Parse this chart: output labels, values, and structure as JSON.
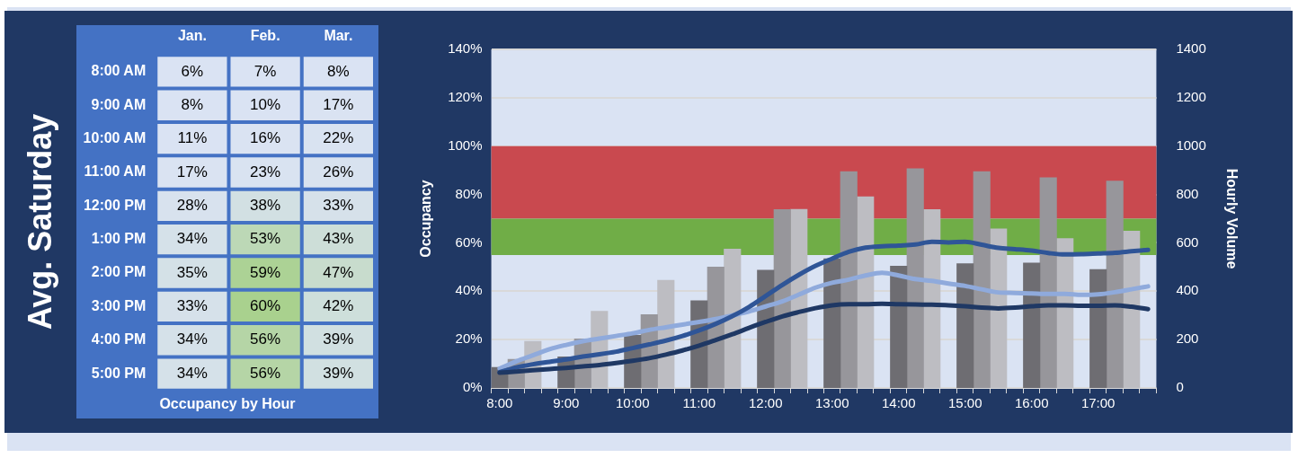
{
  "chart_data": [
    {
      "type": "heatmap",
      "title": "Occupancy by Hour",
      "annotations": [
        "Avg. Saturday"
      ],
      "categories": [
        "Jan.",
        "Feb.",
        "Mar."
      ],
      "y_categories": [
        "8:00 AM",
        "9:00 AM",
        "10:00 AM",
        "11:00 AM",
        "12:00 PM",
        "1:00 PM",
        "2:00 PM",
        "3:00 PM",
        "4:00 PM",
        "5:00 PM"
      ],
      "cells": [
        [
          6,
          7,
          8
        ],
        [
          8,
          10,
          17
        ],
        [
          11,
          16,
          22
        ],
        [
          17,
          23,
          26
        ],
        [
          28,
          38,
          33
        ],
        [
          34,
          53,
          43
        ],
        [
          35,
          59,
          47
        ],
        [
          33,
          60,
          42
        ],
        [
          34,
          56,
          39
        ],
        [
          34,
          56,
          39
        ]
      ],
      "cell_labels": [
        [
          "6%",
          "7%",
          "8%"
        ],
        [
          "8%",
          "10%",
          "17%"
        ],
        [
          "11%",
          "16%",
          "22%"
        ],
        [
          "17%",
          "23%",
          "26%"
        ],
        [
          "28%",
          "38%",
          "33%"
        ],
        [
          "34%",
          "53%",
          "43%"
        ],
        [
          "35%",
          "59%",
          "47%"
        ],
        [
          "33%",
          "60%",
          "42%"
        ],
        [
          "34%",
          "56%",
          "39%"
        ],
        [
          "34%",
          "56%",
          "39%"
        ]
      ]
    },
    {
      "type": "bar",
      "ylabel": "Occupancy",
      "y2label": "Hourly Volume",
      "grid": "y",
      "marker": "none",
      "categories": [
        "8:00",
        null,
        null,
        null,
        "9:00",
        null,
        null,
        null,
        "10:00",
        null,
        null,
        null,
        "11:00",
        null,
        null,
        null,
        "12:00",
        null,
        null,
        null,
        "13:00",
        null,
        null,
        null,
        "14:00",
        null,
        null,
        null,
        "15:00",
        null,
        null,
        null,
        "16:00",
        null,
        null,
        null,
        "17:00",
        null,
        null,
        null
      ],
      "series": [
        {
          "type": "bar",
          "axis": "y2",
          "color": "#6e6d72",
          "values": [
            85,
            null,
            null,
            null,
            129,
            null,
            null,
            null,
            218,
            null,
            null,
            null,
            361,
            null,
            null,
            null,
            487,
            null,
            null,
            null,
            534,
            null,
            null,
            null,
            504,
            null,
            null,
            null,
            514,
            null,
            null,
            null,
            517,
            null,
            null,
            null,
            490,
            null,
            null,
            null
          ]
        },
        {
          "type": "bar",
          "axis": "y2",
          "color": "#97969b",
          "values": [
            null,
            119,
            null,
            null,
            null,
            203,
            null,
            null,
            null,
            303,
            null,
            null,
            null,
            500,
            null,
            null,
            null,
            738,
            null,
            null,
            null,
            895,
            null,
            null,
            null,
            907,
            null,
            null,
            null,
            895,
            null,
            null,
            null,
            870,
            null,
            null,
            null,
            856,
            null,
            null
          ]
        },
        {
          "type": "bar",
          "axis": "y2",
          "color": "#bdbdc2",
          "values": [
            null,
            null,
            193,
            null,
            null,
            null,
            317,
            null,
            null,
            null,
            445,
            null,
            null,
            null,
            574,
            null,
            null,
            null,
            739,
            null,
            null,
            null,
            791,
            null,
            null,
            null,
            738,
            null,
            null,
            null,
            658,
            null,
            null,
            null,
            618,
            null,
            null,
            null,
            649,
            null
          ]
        },
        {
          "type": "line",
          "axis": "y",
          "color": "#1f3864",
          "values": [
            6.3,
            6.8,
            7.3,
            7.8,
            8.3,
            8.9,
            9.5,
            10.3,
            11.2,
            12.3,
            13.8,
            15.5,
            17.5,
            19.8,
            22.2,
            24.8,
            27.3,
            29.6,
            31.4,
            33,
            34.2,
            34.6,
            34.6,
            34.8,
            34.6,
            34.5,
            34.4,
            34.2,
            33.8,
            33.2,
            32.9,
            33.2,
            33.8,
            34.2,
            34.2,
            34,
            34,
            34.2,
            33.6,
            32.6
          ]
        },
        {
          "type": "line",
          "axis": "y",
          "color": "#2f5597",
          "values": [
            6.5,
            8.5,
            9.8,
            10.8,
            11.8,
            13,
            13.9,
            15,
            16.5,
            18,
            19.6,
            21.5,
            23.8,
            26.5,
            29.7,
            33.5,
            38,
            42.6,
            46.8,
            50.5,
            53.5,
            56.3,
            58,
            58.6,
            58.9,
            59.3,
            60.4,
            60.2,
            60.4,
            59.2,
            57.9,
            57.4,
            56.8,
            55.8,
            55.2,
            55.3,
            55.6,
            55.9,
            56.5,
            57.1
          ]
        },
        {
          "type": "line",
          "axis": "y",
          "color": "#8faadc",
          "values": [
            8,
            11,
            13.5,
            16,
            17.8,
            19.3,
            20.4,
            21.5,
            22.6,
            24,
            25.1,
            26.2,
            27.3,
            28.5,
            30,
            31.6,
            33.7,
            35.8,
            38.6,
            41.5,
            43.5,
            44.8,
            46.5,
            47.6,
            46.5,
            45,
            44.3,
            43.2,
            42.2,
            40.8,
            39.5,
            39.3,
            39.1,
            38.9,
            38.9,
            38.5,
            38.7,
            39.6,
            40.8,
            42
          ]
        }
      ],
      "ylim": [
        0,
        140
      ],
      "yticks": [
        {
          "value": 0,
          "label": "0%"
        },
        {
          "value": 20,
          "label": "20%"
        },
        {
          "value": 40,
          "label": "40%"
        },
        {
          "value": 60,
          "label": "60%"
        },
        {
          "value": 80,
          "label": "80%"
        },
        {
          "value": 100,
          "label": "100%"
        },
        {
          "value": 120,
          "label": "120%"
        },
        {
          "value": 140,
          "label": "140%"
        }
      ],
      "y2lim": [
        0,
        1400
      ],
      "y2ticks": [
        0,
        200,
        400,
        600,
        800,
        1000,
        1200,
        1400
      ],
      "bands": [
        {
          "axis": "y",
          "from": 70,
          "to": 100,
          "color": "#c9494f"
        },
        {
          "axis": "y",
          "from": 55,
          "to": 70,
          "color": "#70ad47"
        }
      ]
    }
  ]
}
